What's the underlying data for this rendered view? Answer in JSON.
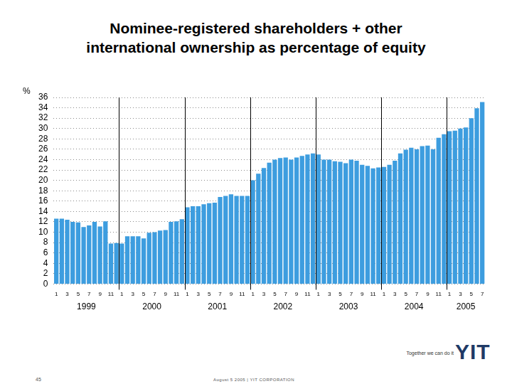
{
  "chart_data": {
    "type": "bar",
    "title": [
      "Nominee-registered shareholders + other",
      "international ownership as percentage of equity"
    ],
    "y_label": "%",
    "categories": [
      1,
      null,
      3,
      null,
      5,
      null,
      7,
      null,
      9,
      null,
      11,
      null,
      1,
      null,
      3,
      null,
      5,
      null,
      7,
      null,
      9,
      null,
      11,
      null,
      1,
      null,
      3,
      null,
      5,
      null,
      7,
      null,
      9,
      null,
      11,
      null,
      1,
      null,
      3,
      null,
      5,
      null,
      7,
      null,
      9,
      null,
      11,
      null,
      1,
      null,
      3,
      null,
      5,
      null,
      7,
      null,
      9,
      null,
      11,
      null,
      1,
      null,
      3,
      null,
      5,
      null,
      7,
      null,
      9,
      null,
      11,
      null,
      1,
      null,
      3,
      null,
      5,
      null,
      7
    ],
    "x_groups": [
      "1999",
      "2000",
      "2001",
      "2002",
      "2003",
      "2004",
      "2005"
    ],
    "values": [
      12.6,
      12.6,
      12.4,
      12.0,
      11.9,
      11.0,
      11.3,
      12.0,
      11.1,
      12.1,
      7.8,
      7.9,
      7.8,
      9.2,
      9.2,
      9.2,
      8.8,
      9.9,
      10.0,
      10.3,
      10.4,
      12.0,
      12.1,
      12.5,
      14.8,
      15.0,
      15.0,
      15.4,
      15.6,
      15.7,
      16.8,
      17.0,
      17.3,
      17.0,
      17.0,
      17.0,
      20.0,
      21.3,
      22.4,
      23.4,
      24.0,
      24.3,
      24.4,
      24.0,
      24.4,
      24.7,
      25.0,
      25.2,
      25.0,
      24.0,
      24.0,
      23.7,
      23.6,
      23.3,
      24.0,
      23.8,
      23.0,
      22.8,
      22.3,
      22.5,
      22.6,
      23.0,
      23.8,
      25.2,
      25.9,
      26.3,
      26.0,
      26.6,
      26.7,
      26.0,
      28.2,
      28.9,
      29.5,
      29.6,
      30.0,
      30.2,
      32.0,
      33.9,
      35.1
    ],
    "color": "#3d9ddf",
    "ylim": [
      0,
      36
    ],
    "yticks": [
      0,
      2,
      4,
      6,
      8,
      10,
      12,
      14,
      16,
      18,
      20,
      22,
      24,
      26,
      28,
      30,
      32,
      34,
      36
    ],
    "grid": true
  },
  "footer": {
    "tagline": "Together we can do it",
    "logo": "YIT",
    "page": "45",
    "line": "August 5 2005 | YIT CORPORATION"
  }
}
